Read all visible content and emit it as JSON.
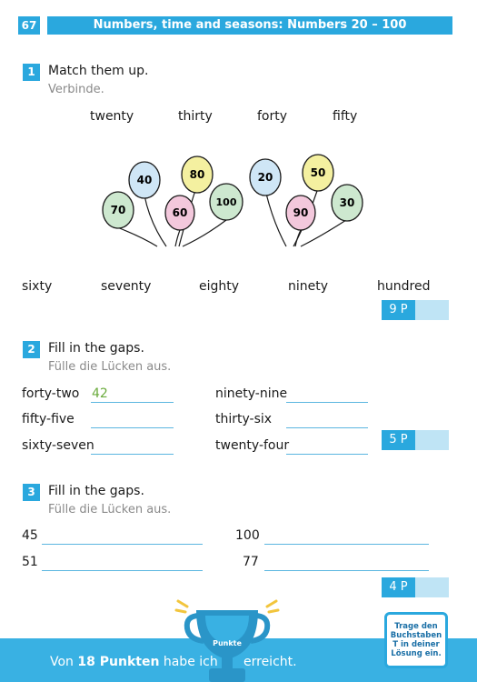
{
  "header": {
    "page_number": "67",
    "title": "Numbers, time and seasons: Numbers 20 – 100"
  },
  "exercise1": {
    "number": "1",
    "title": "Match them up.",
    "subtitle": "Verbinde.",
    "top_words": [
      "twenty",
      "thirty",
      "forty",
      "fifty"
    ],
    "balloons_left": [
      "40",
      "80",
      "70",
      "60",
      "100"
    ],
    "balloons_right": [
      "20",
      "50",
      "90",
      "30"
    ],
    "bottom_words": [
      "sixty",
      "seventy",
      "eighty",
      "ninety",
      "hundred"
    ],
    "score": "9 P"
  },
  "exercise2": {
    "number": "2",
    "title": "Fill in the gaps.",
    "subtitle": "Fülle die Lücken aus.",
    "left": [
      {
        "label": "forty-two",
        "answer": "42"
      },
      {
        "label": "fifty-five",
        "answer": ""
      },
      {
        "label": "sixty-seven",
        "answer": ""
      }
    ],
    "right": [
      {
        "label": "ninety-nine",
        "answer": ""
      },
      {
        "label": "thirty-six",
        "answer": ""
      },
      {
        "label": "twenty-four",
        "answer": ""
      }
    ],
    "score": "5 P"
  },
  "exercise3": {
    "number": "3",
    "title": "Fill in the gaps.",
    "subtitle": "Fülle die Lücken aus.",
    "left": [
      "45",
      "51"
    ],
    "right": [
      "100",
      "77"
    ],
    "score": "4 P"
  },
  "footer": {
    "prefix": "Von",
    "points_total": "18 Punkten",
    "middle": "habe ich",
    "suffix": "erreicht.",
    "trophy_label": "Punkte",
    "hint": "Trage den Buchstaben T in deiner Lösung ein."
  },
  "colors": {
    "accent": "#2aa8de",
    "answer_green": "#6aab3c",
    "balloon_blue": "#cfe6f6",
    "balloon_yellow": "#f4f0a0",
    "balloon_pink": "#f3c8dc",
    "balloon_green": "#cde8cf"
  }
}
